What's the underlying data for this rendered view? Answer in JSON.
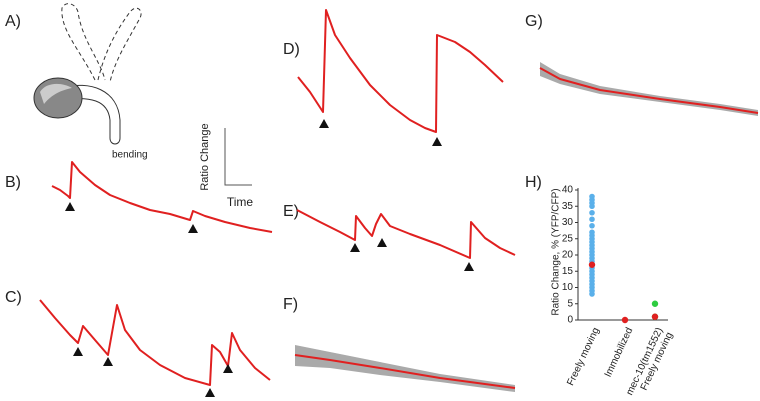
{
  "panels": {
    "A": {
      "label": "A)",
      "annotation": "bending"
    },
    "B": {
      "label": "B)",
      "scale_y": "Ratio Change",
      "scale_x": "Time"
    },
    "C": {
      "label": "C)"
    },
    "D": {
      "label": "D)"
    },
    "E": {
      "label": "E)"
    },
    "F": {
      "label": "F)"
    },
    "G": {
      "label": "G)"
    },
    "H": {
      "label": "H)"
    }
  },
  "chart_data": {
    "type": "scatter",
    "y_label": "Ratio Change, % (YFP/CFP)",
    "categories": [
      "Freely moving",
      "Immobilized",
      "mec-10(tm1552)\nFreely moving"
    ],
    "ylim": [
      0,
      40
    ],
    "yticks": [
      0,
      5,
      10,
      15,
      20,
      25,
      30,
      35,
      40
    ],
    "series": [
      {
        "color": "#5ab0ea",
        "values": [
          [
            38,
            37,
            36,
            35,
            33,
            31,
            29,
            27,
            26,
            25,
            24,
            23,
            22,
            21,
            20,
            19,
            18,
            16,
            15,
            14,
            13,
            12,
            11,
            10,
            9,
            8
          ],
          [],
          []
        ]
      },
      {
        "color": "#2ecc40",
        "values": [
          [],
          [],
          [
            5,
            1
          ]
        ]
      },
      {
        "color": "#e02020",
        "values": [
          [
            17
          ],
          [
            0
          ],
          [
            1
          ]
        ]
      }
    ]
  }
}
